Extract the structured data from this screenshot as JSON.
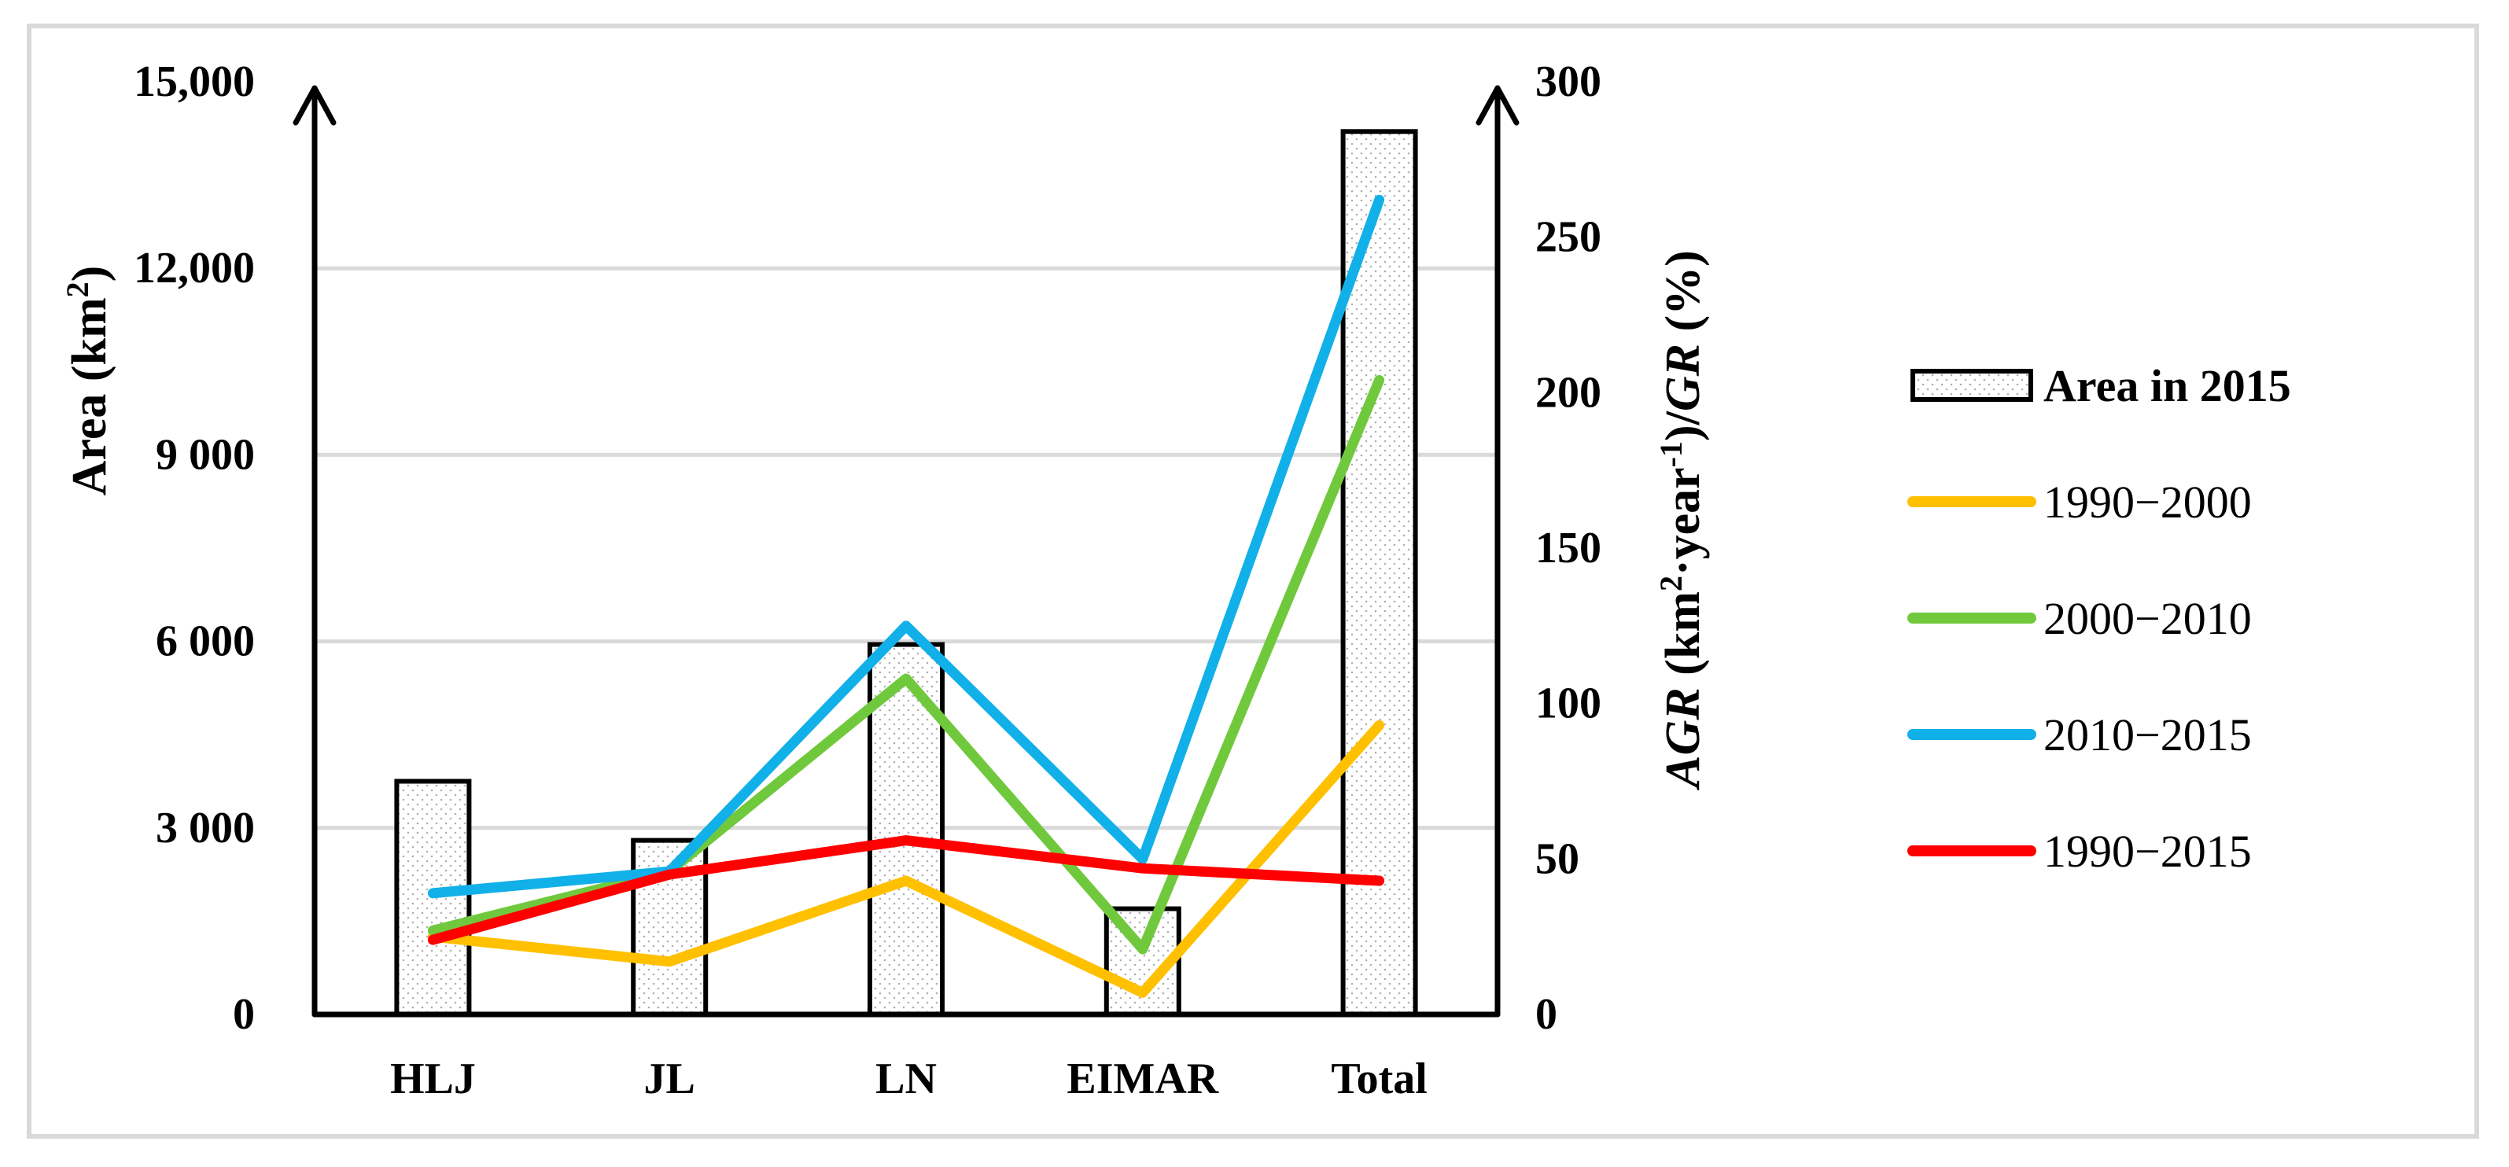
{
  "chart_data": {
    "type": "bar+line",
    "categories": [
      "HLJ",
      "JL",
      "LN",
      "EIMAR",
      "Total"
    ],
    "left_axis": {
      "label_prefix": "Area (km",
      "label_sup": "2",
      "label_suffix": ")",
      "ylim": [
        0,
        15000
      ],
      "ticks": [
        0,
        3000,
        6000,
        9000,
        12000,
        15000
      ],
      "tick_labels": [
        "0",
        "3 000",
        "6 000",
        "9 000",
        "12,000",
        "15,000"
      ]
    },
    "right_axis": {
      "label_parts": [
        {
          "text": "AGR",
          "italic": true
        },
        {
          "text": " (km"
        },
        {
          "text": "2",
          "sup": true
        },
        {
          "text": "·year"
        },
        {
          "text": "-1",
          "sup": true
        },
        {
          "text": ")/"
        },
        {
          "text": "GR",
          "italic": true
        },
        {
          "text": " (%)"
        }
      ],
      "ylim": [
        0,
        300
      ],
      "ticks": [
        0,
        50,
        100,
        150,
        200,
        250,
        300
      ],
      "tick_labels": [
        "0",
        "50",
        "100",
        "150",
        "200",
        "250",
        "300"
      ]
    },
    "bars": {
      "name": "Area in 2015",
      "axis": "left",
      "values": [
        3750,
        2800,
        5950,
        1700,
        14200
      ],
      "fill": "dotted",
      "stroke": "#000000"
    },
    "series": [
      {
        "name": "1990−2000",
        "axis": "right",
        "color": "#FFC000",
        "values": [
          25,
          17,
          43,
          7,
          93
        ]
      },
      {
        "name": "2000−2010",
        "axis": "right",
        "color": "#70C93C",
        "values": [
          27,
          46,
          108,
          21,
          204
        ]
      },
      {
        "name": "2010−2015",
        "axis": "right",
        "color": "#11B0E8",
        "values": [
          39,
          46,
          125,
          50,
          262
        ]
      },
      {
        "name": "1990−2015",
        "axis": "right",
        "color": "#FF0000",
        "values": [
          24,
          45,
          56,
          47,
          43
        ]
      }
    ],
    "legend_position": "right",
    "grid": true
  }
}
